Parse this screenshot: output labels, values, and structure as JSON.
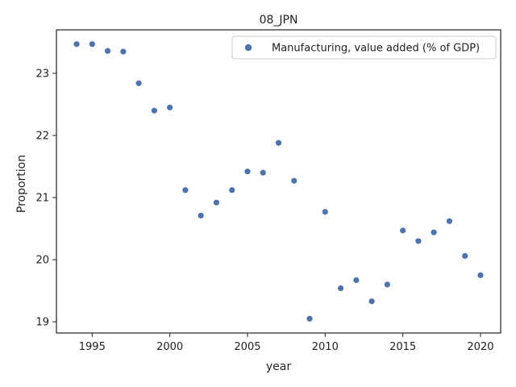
{
  "chart_data": {
    "type": "scatter",
    "title": "08_JPN",
    "xlabel": "year",
    "ylabel": "Proportion",
    "xlim": [
      1992.7,
      2021.3
    ],
    "ylim": [
      18.82,
      23.7
    ],
    "xticks": [
      1995,
      2000,
      2005,
      2010,
      2015,
      2020
    ],
    "yticks": [
      19,
      20,
      21,
      22,
      23
    ],
    "grid": false,
    "legend_position": "top-right",
    "marker_color": "#4c72b0",
    "series": [
      {
        "name": "Manufacturing, value added (% of GDP)",
        "x": [
          1994,
          1995,
          1996,
          1997,
          1998,
          1999,
          2000,
          2001,
          2002,
          2003,
          2004,
          2005,
          2006,
          2007,
          2008,
          2009,
          2010,
          2011,
          2012,
          2013,
          2014,
          2015,
          2016,
          2017,
          2018,
          2019,
          2020
        ],
        "y": [
          23.47,
          23.47,
          23.36,
          23.35,
          22.84,
          22.4,
          22.45,
          21.12,
          20.71,
          20.92,
          21.12,
          21.42,
          21.4,
          21.88,
          21.27,
          19.05,
          20.77,
          19.54,
          19.67,
          19.33,
          19.6,
          20.47,
          20.3,
          20.44,
          20.62,
          20.06,
          19.75
        ]
      }
    ]
  }
}
